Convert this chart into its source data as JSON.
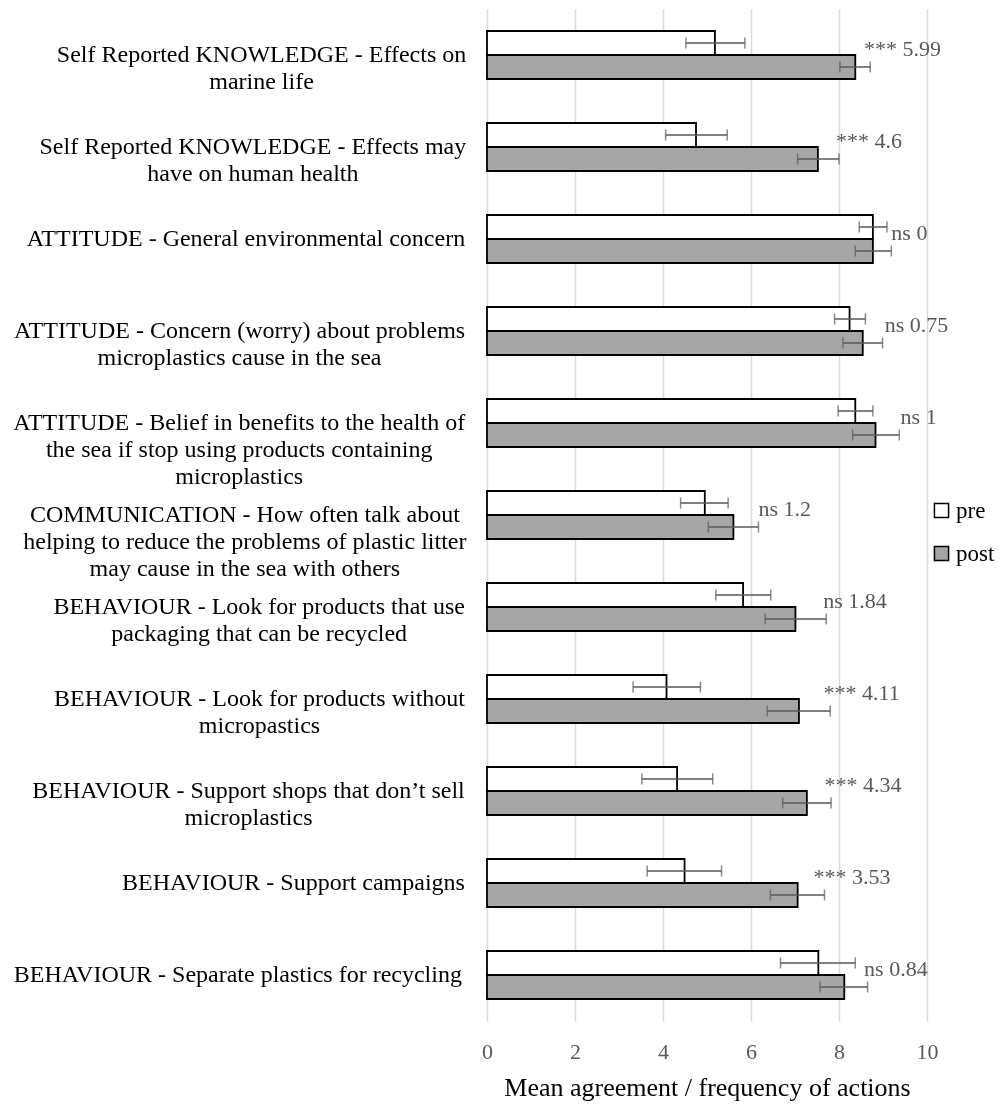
{
  "chart_data": {
    "type": "bar",
    "orientation": "horizontal",
    "xlabel": "Mean agreement / frequency of actions",
    "categories": [
      "Self Reported KNOWLEDGE - Effects on marine life",
      "Self Reported KNOWLEDGE - Effects may have on human health",
      "ATTITUDE - General environmental concern",
      "ATTITUDE - Concern (worry) about problems microplastics cause in the sea",
      "ATTITUDE - Belief in benefits to the health of the sea if stop using products containing microplastics",
      "COMMUNICATION - How often talk about helping to reduce the problems of plastic litter may cause in the sea with others",
      "BEHAVIOUR - Look for products that use packaging that can be recycled",
      "BEHAVIOUR - Look for products without micropastics",
      "BEHAVIOUR - Support shops that don’t sell microplastics",
      "BEHAVIOUR - Support campaigns",
      "BEHAVIOUR -  Separate plastics for recycling"
    ],
    "series": [
      {
        "name": "pre",
        "color": "#ffffff",
        "values": [
          5.18,
          4.75,
          8.77,
          8.24,
          8.37,
          4.95,
          5.82,
          4.08,
          4.32,
          4.49,
          7.53
        ],
        "errors": [
          [
            4.52,
            5.86
          ],
          [
            4.06,
            5.46
          ],
          [
            8.46,
            9.09
          ],
          [
            7.9,
            8.6
          ],
          [
            7.98,
            8.77
          ],
          [
            4.4,
            5.48
          ],
          [
            5.2,
            6.45
          ],
          [
            3.32,
            4.85
          ],
          [
            3.52,
            5.13
          ],
          [
            3.64,
            5.33
          ],
          [
            6.67,
            8.37
          ]
        ]
      },
      {
        "name": "post",
        "color": "#a6a6a6",
        "values": [
          8.37,
          7.52,
          8.77,
          8.54,
          8.83,
          5.6,
          7.01,
          7.09,
          7.27,
          7.06,
          8.12
        ],
        "errors": [
          [
            8.02,
            8.71
          ],
          [
            7.06,
            8.0
          ],
          [
            8.37,
            9.19
          ],
          [
            8.09,
            8.99
          ],
          [
            8.31,
            9.37
          ],
          [
            5.03,
            6.17
          ],
          [
            6.32,
            7.71
          ],
          [
            6.37,
            7.8
          ],
          [
            6.72,
            7.82
          ],
          [
            6.44,
            7.67
          ],
          [
            7.57,
            8.65
          ]
        ]
      }
    ],
    "xlim": [
      0,
      10
    ],
    "xticks": [
      0,
      2,
      4,
      6,
      8,
      10
    ],
    "grid": "x",
    "legend": "right",
    "annotations": [
      {
        "text": "*** 5.99",
        "x": 8.57,
        "y": "Self Reported KNOWLEDGE - Effects on marine life"
      },
      {
        "text": "*** 4.6",
        "x": 7.93,
        "y": "Self Reported KNOWLEDGE - Effects may have on human health"
      },
      {
        "text": "ns 0",
        "x": 9.19,
        "y": "ATTITUDE - General environmental concern"
      },
      {
        "text": "ns 0.75",
        "x": 9.04,
        "y": "ATTITUDE - Concern (worry) about problems microplastics cause in the sea"
      },
      {
        "text": "ns 1",
        "x": 9.4,
        "y": "ATTITUDE - Belief in benefits to the health of the sea if stop using products containing microplastics"
      },
      {
        "text": "ns 1.2",
        "x": 6.17,
        "y": "COMMUNICATION - How often talk about helping to reduce the problems of plastic litter may cause in the sea with others"
      },
      {
        "text": "ns 1.84",
        "x": 7.64,
        "y": "BEHAVIOUR - Look for products that use packaging that can be recycled"
      },
      {
        "text": "*** 4.11",
        "x": 7.65,
        "y": "BEHAVIOUR - Look for products without micropastics"
      },
      {
        "text": "*** 4.34",
        "x": 7.67,
        "y": "BEHAVIOUR - Support shops that don’t sell microplastics"
      },
      {
        "text": "*** 3.53",
        "x": 7.42,
        "y": "BEHAVIOUR - Support campaigns"
      },
      {
        "text": "ns 0.84",
        "x": 8.57,
        "y": "BEHAVIOUR -  Separate plastics for recycling"
      }
    ]
  }
}
